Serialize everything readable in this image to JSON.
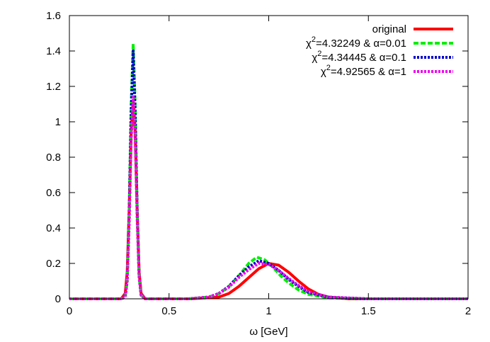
{
  "chart_data": {
    "type": "line",
    "xlabel": "ω [GeV]",
    "ylabel": "",
    "xlim": [
      0,
      2
    ],
    "ylim": [
      0,
      1.6
    ],
    "x_ticks": [
      "0",
      "0.5",
      "1",
      "1.5",
      "2"
    ],
    "y_ticks": [
      "0",
      "0.2",
      "0.4",
      "0.6",
      "0.8",
      "1",
      "1.2",
      "1.4",
      "1.6"
    ],
    "x_tick_values": [
      0,
      0.5,
      1,
      1.5,
      2
    ],
    "y_tick_values": [
      0,
      0.2,
      0.4,
      0.6,
      0.8,
      1,
      1.2,
      1.4,
      1.6
    ],
    "grid": false,
    "legend_position": "top-right",
    "series": [
      {
        "name": "original",
        "legend_parts": [
          "original"
        ],
        "color": "#ff0000",
        "style": "solid",
        "x": [
          0,
          0.26,
          0.28,
          0.29,
          0.3,
          0.31,
          0.32,
          0.33,
          0.34,
          0.35,
          0.36,
          0.38,
          0.4,
          0.6,
          0.75,
          0.8,
          0.85,
          0.9,
          0.95,
          1.0,
          1.05,
          1.1,
          1.15,
          1.2,
          1.25,
          1.3,
          1.4,
          1.6,
          2.0
        ],
        "y": [
          0,
          0,
          0.03,
          0.15,
          0.5,
          0.95,
          1.12,
          0.95,
          0.5,
          0.15,
          0.03,
          0,
          0,
          0,
          0.01,
          0.03,
          0.07,
          0.12,
          0.17,
          0.2,
          0.19,
          0.15,
          0.1,
          0.055,
          0.025,
          0.01,
          0,
          0,
          0
        ]
      },
      {
        "name": "χ2=4.32249 & α=0.01",
        "legend_parts": [
          "χ",
          "2",
          "=4.32249 & α=0.01"
        ],
        "color": "#00ee00",
        "style": "dashed",
        "x": [
          0,
          0.26,
          0.28,
          0.29,
          0.3,
          0.31,
          0.32,
          0.33,
          0.34,
          0.35,
          0.36,
          0.38,
          0.4,
          0.6,
          0.7,
          0.75,
          0.8,
          0.85,
          0.9,
          0.94,
          0.98,
          1.02,
          1.06,
          1.1,
          1.15,
          1.2,
          1.3,
          1.5,
          2.0
        ],
        "y": [
          0,
          0,
          0.01,
          0.1,
          0.5,
          1.1,
          1.44,
          1.1,
          0.5,
          0.12,
          0.02,
          0,
          0,
          0,
          0.01,
          0.03,
          0.07,
          0.13,
          0.2,
          0.235,
          0.22,
          0.18,
          0.13,
          0.09,
          0.05,
          0.025,
          0.005,
          0,
          0
        ]
      },
      {
        "name": "χ2=4.34445 & α=0.1",
        "legend_parts": [
          "χ",
          "2",
          "=4.34445 & α=0.1"
        ],
        "color": "#0000cc",
        "style": "dotted",
        "x": [
          0,
          0.26,
          0.28,
          0.29,
          0.3,
          0.31,
          0.32,
          0.33,
          0.34,
          0.35,
          0.36,
          0.38,
          0.4,
          0.6,
          0.7,
          0.75,
          0.8,
          0.85,
          0.9,
          0.95,
          1.0,
          1.05,
          1.1,
          1.15,
          1.2,
          1.3,
          1.5,
          2.0
        ],
        "y": [
          0,
          0,
          0.01,
          0.1,
          0.48,
          1.05,
          1.4,
          1.05,
          0.5,
          0.12,
          0.02,
          0,
          0,
          0,
          0.01,
          0.03,
          0.07,
          0.13,
          0.18,
          0.215,
          0.2,
          0.16,
          0.11,
          0.07,
          0.035,
          0.008,
          0,
          0
        ]
      },
      {
        "name": "χ2=4.92565 & α=1",
        "legend_parts": [
          "χ",
          "2",
          "=4.92565 & α=1"
        ],
        "color": "#ee00ee",
        "style": "dotted",
        "x": [
          0,
          0.26,
          0.28,
          0.29,
          0.3,
          0.31,
          0.32,
          0.33,
          0.34,
          0.35,
          0.36,
          0.38,
          0.4,
          0.6,
          0.7,
          0.75,
          0.8,
          0.85,
          0.9,
          0.95,
          1.0,
          1.05,
          1.1,
          1.15,
          1.2,
          1.3,
          1.5,
          2.0
        ],
        "y": [
          0,
          0,
          0.01,
          0.1,
          0.42,
          0.9,
          1.14,
          0.92,
          0.45,
          0.12,
          0.02,
          0,
          0,
          0,
          0.01,
          0.03,
          0.065,
          0.12,
          0.165,
          0.2,
          0.195,
          0.16,
          0.115,
          0.075,
          0.04,
          0.01,
          0,
          0
        ]
      }
    ]
  }
}
